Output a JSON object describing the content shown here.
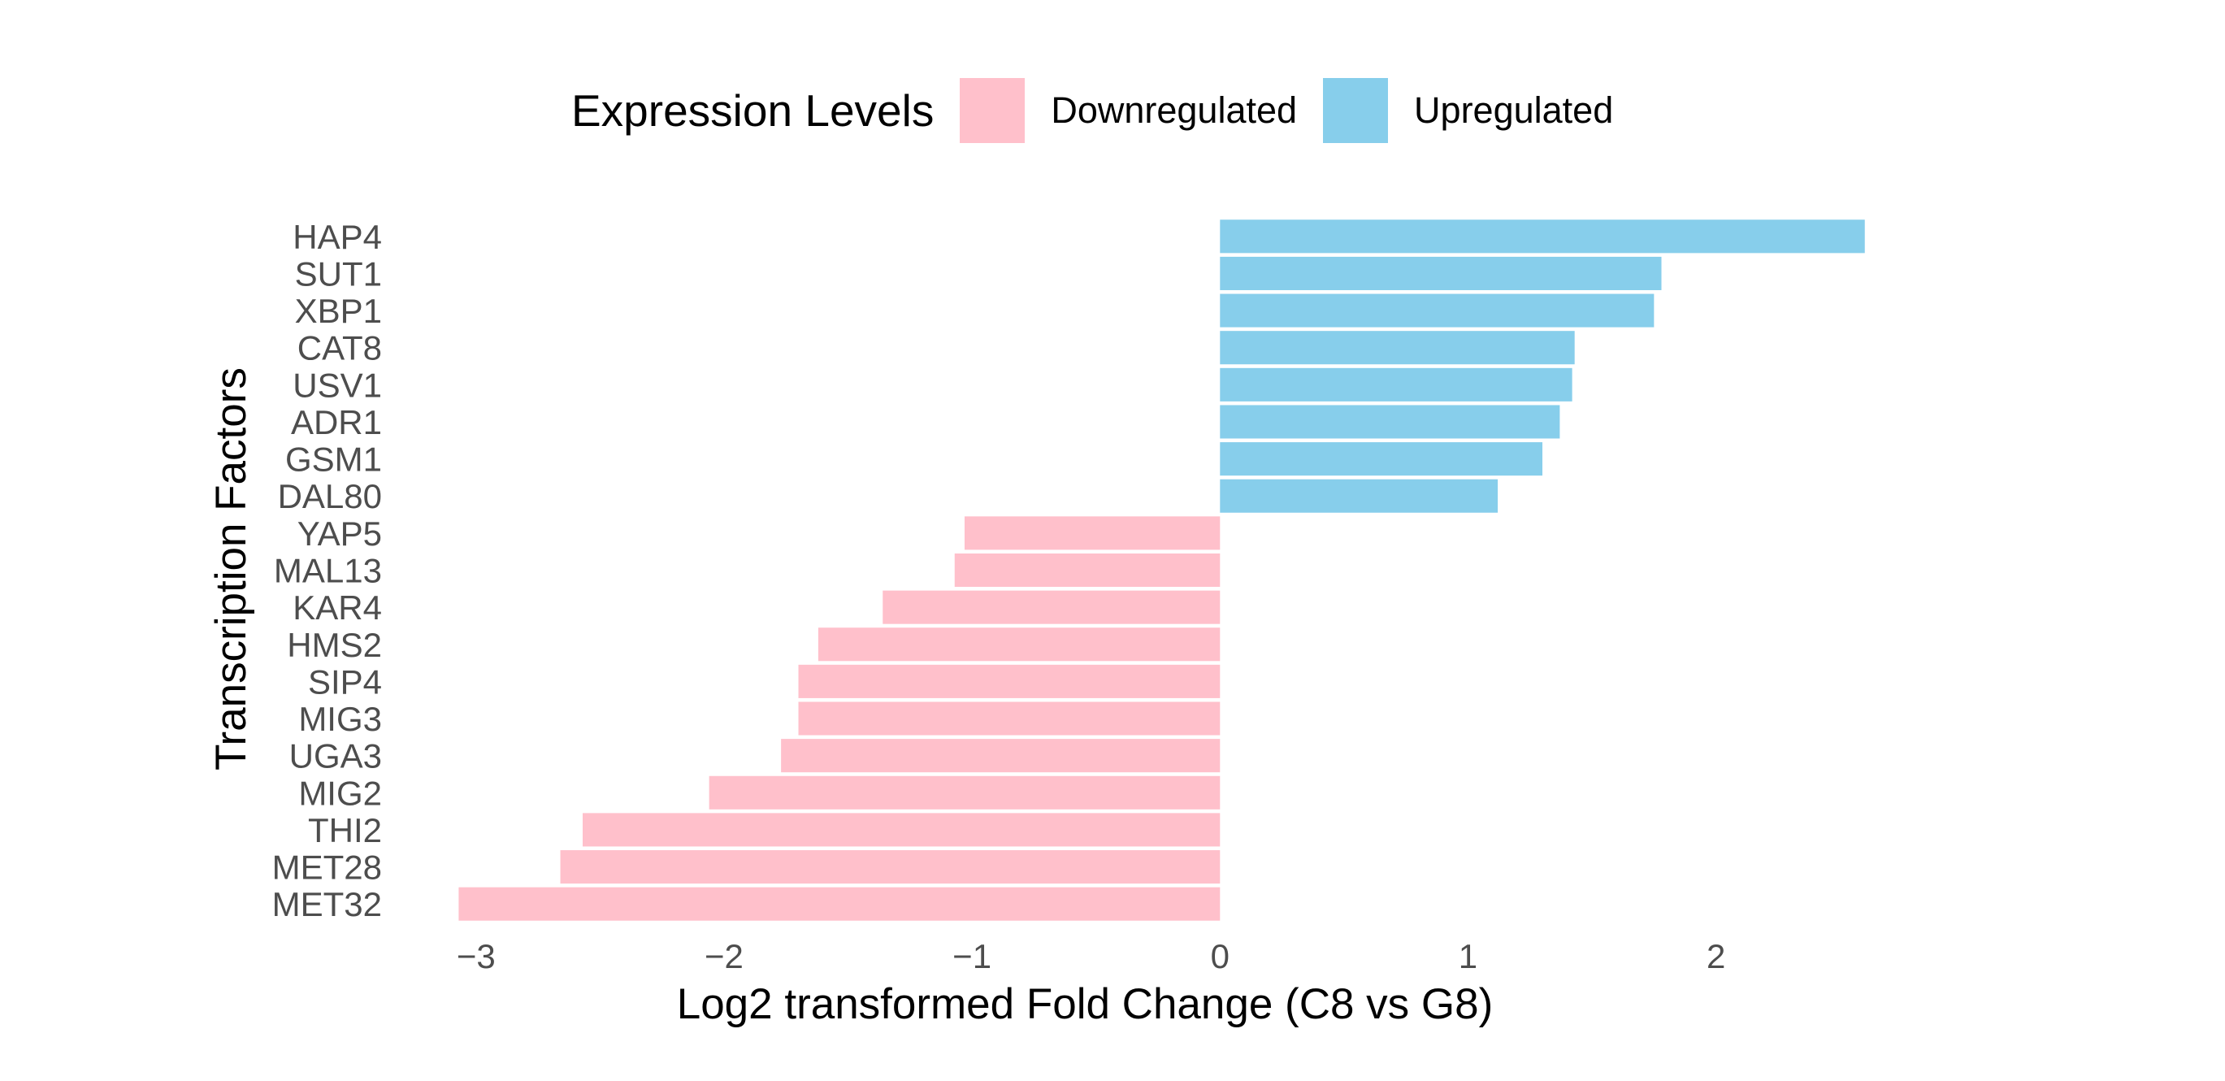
{
  "legend": {
    "title": "Expression Levels",
    "items": [
      {
        "label": "Downregulated",
        "color": "#FFC0CB"
      },
      {
        "label": "Upregulated",
        "color": "#87CEEB"
      }
    ]
  },
  "chart_data": {
    "type": "bar",
    "orientation": "horizontal",
    "title": "",
    "xlabel": "Log2 transformed Fold Change (C8 vs G8)",
    "ylabel": "Transcription Factors",
    "xlim": [
      -3.15,
      2.65
    ],
    "xticks": [
      -3,
      -2,
      -1,
      0,
      1,
      2
    ],
    "xtick_labels": [
      "−3",
      "−2",
      "−1",
      "0",
      "1",
      "2"
    ],
    "grid": false,
    "legend_position": "top",
    "categories": [
      "HAP4",
      "SUT1",
      "XBP1",
      "CAT8",
      "USV1",
      "ADR1",
      "GSM1",
      "DAL80",
      "YAP5",
      "MAL13",
      "KAR4",
      "HMS2",
      "SIP4",
      "MIG3",
      "UGA3",
      "MIG2",
      "THI2",
      "MET28",
      "MET32"
    ],
    "values": [
      2.6,
      1.78,
      1.75,
      1.43,
      1.42,
      1.37,
      1.3,
      1.12,
      -1.03,
      -1.07,
      -1.36,
      -1.62,
      -1.7,
      -1.7,
      -1.77,
      -2.06,
      -2.57,
      -2.66,
      -3.07
    ],
    "groups": [
      "Upregulated",
      "Upregulated",
      "Upregulated",
      "Upregulated",
      "Upregulated",
      "Upregulated",
      "Upregulated",
      "Upregulated",
      "Downregulated",
      "Downregulated",
      "Downregulated",
      "Downregulated",
      "Downregulated",
      "Downregulated",
      "Downregulated",
      "Downregulated",
      "Downregulated",
      "Downregulated",
      "Downregulated"
    ],
    "colors": {
      "Upregulated": "#87CEEB",
      "Downregulated": "#FFC0CB"
    }
  }
}
